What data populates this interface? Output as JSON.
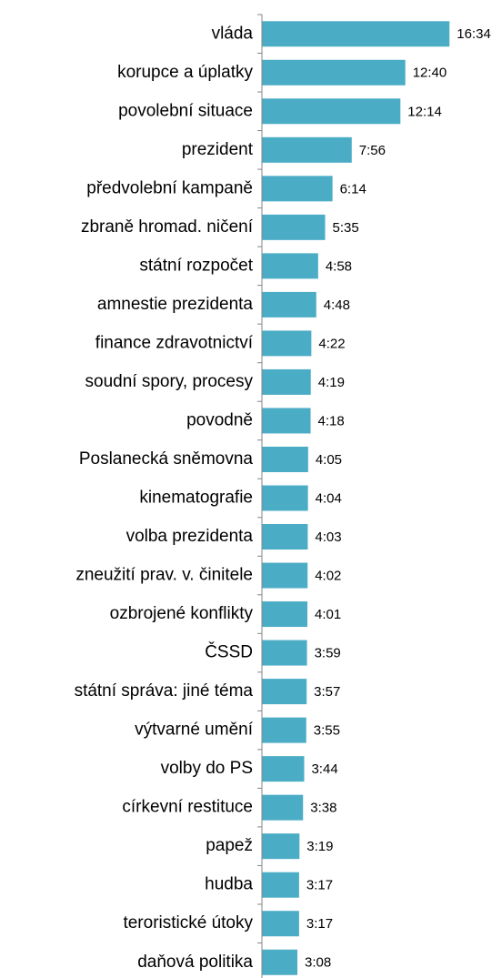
{
  "chart_data": {
    "type": "barh",
    "categories": [
      "vláda",
      "korupce a úplatky",
      "povolební situace",
      "prezident",
      "předvolební kampaně",
      "zbraně hromad. ničení",
      "státní rozpočet",
      "amnestie prezidenta",
      "finance zdravotnictví",
      "soudní spory, procesy",
      "povodně",
      "Poslanecká sněmovna",
      "kinematografie",
      "volba prezidenta",
      "zneužití prav. v. činitele",
      "ozbrojené konflikty",
      "ČSSD",
      "státní správa: jiné téma",
      "výtvarné umění",
      "volby do PS",
      "církevní restituce",
      "papež",
      "hudba",
      "teroristické útoky",
      "daňová politika"
    ],
    "values": [
      994,
      760,
      734,
      476,
      374,
      335,
      298,
      288,
      262,
      259,
      258,
      245,
      244,
      243,
      242,
      241,
      239,
      237,
      235,
      224,
      218,
      199,
      197,
      197,
      188
    ],
    "value_labels": [
      "16:34",
      "12:40",
      "12:14",
      "7:56",
      "6:14",
      "5:35",
      "4:58",
      "4:48",
      "4:22",
      "4:19",
      "4:18",
      "4:05",
      "4:04",
      "4:03",
      "4:02",
      "4:01",
      "3:59",
      "3:57",
      "3:55",
      "3:44",
      "3:38",
      "3:19",
      "3:17",
      "3:17",
      "3:08"
    ],
    "color": "#4bacc6",
    "xlim": [
      0,
      1200
    ]
  }
}
